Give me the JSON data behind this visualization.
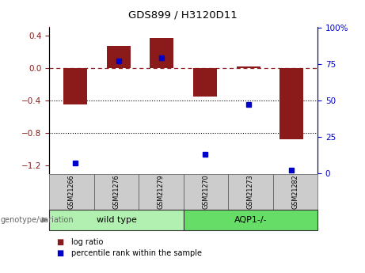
{
  "title": "GDS899 / H3120D11",
  "samples": [
    "GSM21266",
    "GSM21276",
    "GSM21279",
    "GSM21270",
    "GSM21273",
    "GSM21282"
  ],
  "log_ratios": [
    -0.45,
    0.27,
    0.37,
    -0.35,
    0.02,
    -0.88
  ],
  "percentile_ranks": [
    7,
    77,
    79,
    13,
    47,
    2
  ],
  "bar_color": "#8B1A1A",
  "dot_color": "#0000CC",
  "ylim_left": [
    -1.3,
    0.5
  ],
  "ylim_right": [
    0,
    100
  ],
  "y_ticks_left": [
    -1.2,
    -0.8,
    -0.4,
    0.0,
    0.4
  ],
  "y_ticks_right": [
    0,
    25,
    50,
    75,
    100
  ],
  "hline_y": 0.0,
  "dotted_lines": [
    -0.4,
    -0.8
  ],
  "legend_log_ratio": "log ratio",
  "legend_percentile": "percentile rank within the sample",
  "genotype_label": "genotype/variation",
  "group_labels": [
    "wild type",
    "AQP1-/-"
  ],
  "group_starts": [
    0,
    3
  ],
  "group_counts": [
    3,
    3
  ],
  "group_colors": [
    "#b2f0b2",
    "#66dd66"
  ],
  "sample_box_color": "#cccccc",
  "background_color": "#ffffff",
  "bar_width": 0.55
}
